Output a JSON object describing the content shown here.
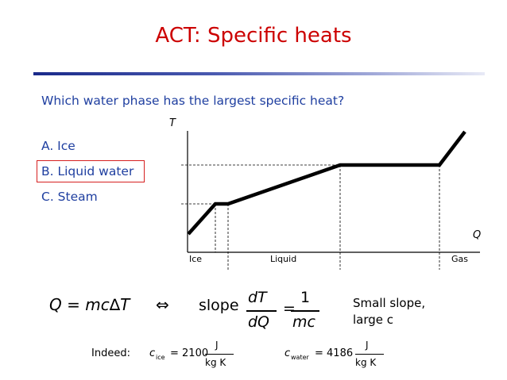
{
  "slide": {
    "title": "ACT: Specific heats",
    "question": "Which water phase has the largest specific heat?",
    "options": [
      {
        "label": "A. Ice"
      },
      {
        "label": "B. Liquid water",
        "highlighted": true
      },
      {
        "label": "C. Steam"
      }
    ]
  },
  "graph": {
    "y_axis_label": "T",
    "x_axis_label": "Q",
    "phase_labels": [
      "Ice",
      "Liquid",
      "Gas"
    ]
  },
  "equations": {
    "heat": "Q = mc∆T",
    "iff": "⇔",
    "slope_word": "slope",
    "frac1_num": "dT",
    "frac1_den": "dQ",
    "equals": "=",
    "frac2_num": "1",
    "frac2_den": "mc",
    "note_line1": "Small slope,",
    "note_line2": "large c"
  },
  "specific_heats": {
    "indeed": "Indeed:",
    "c_symbol": "c",
    "ice_sub": "ice",
    "ice_value": "= 2100",
    "water_sub": "water",
    "water_value": "= 4186",
    "unit_num": "J",
    "unit_den": "kg K"
  },
  "colors": {
    "title": "#cc0000",
    "text_accent": "#1f3fa0",
    "answer_box": "#d62020"
  }
}
